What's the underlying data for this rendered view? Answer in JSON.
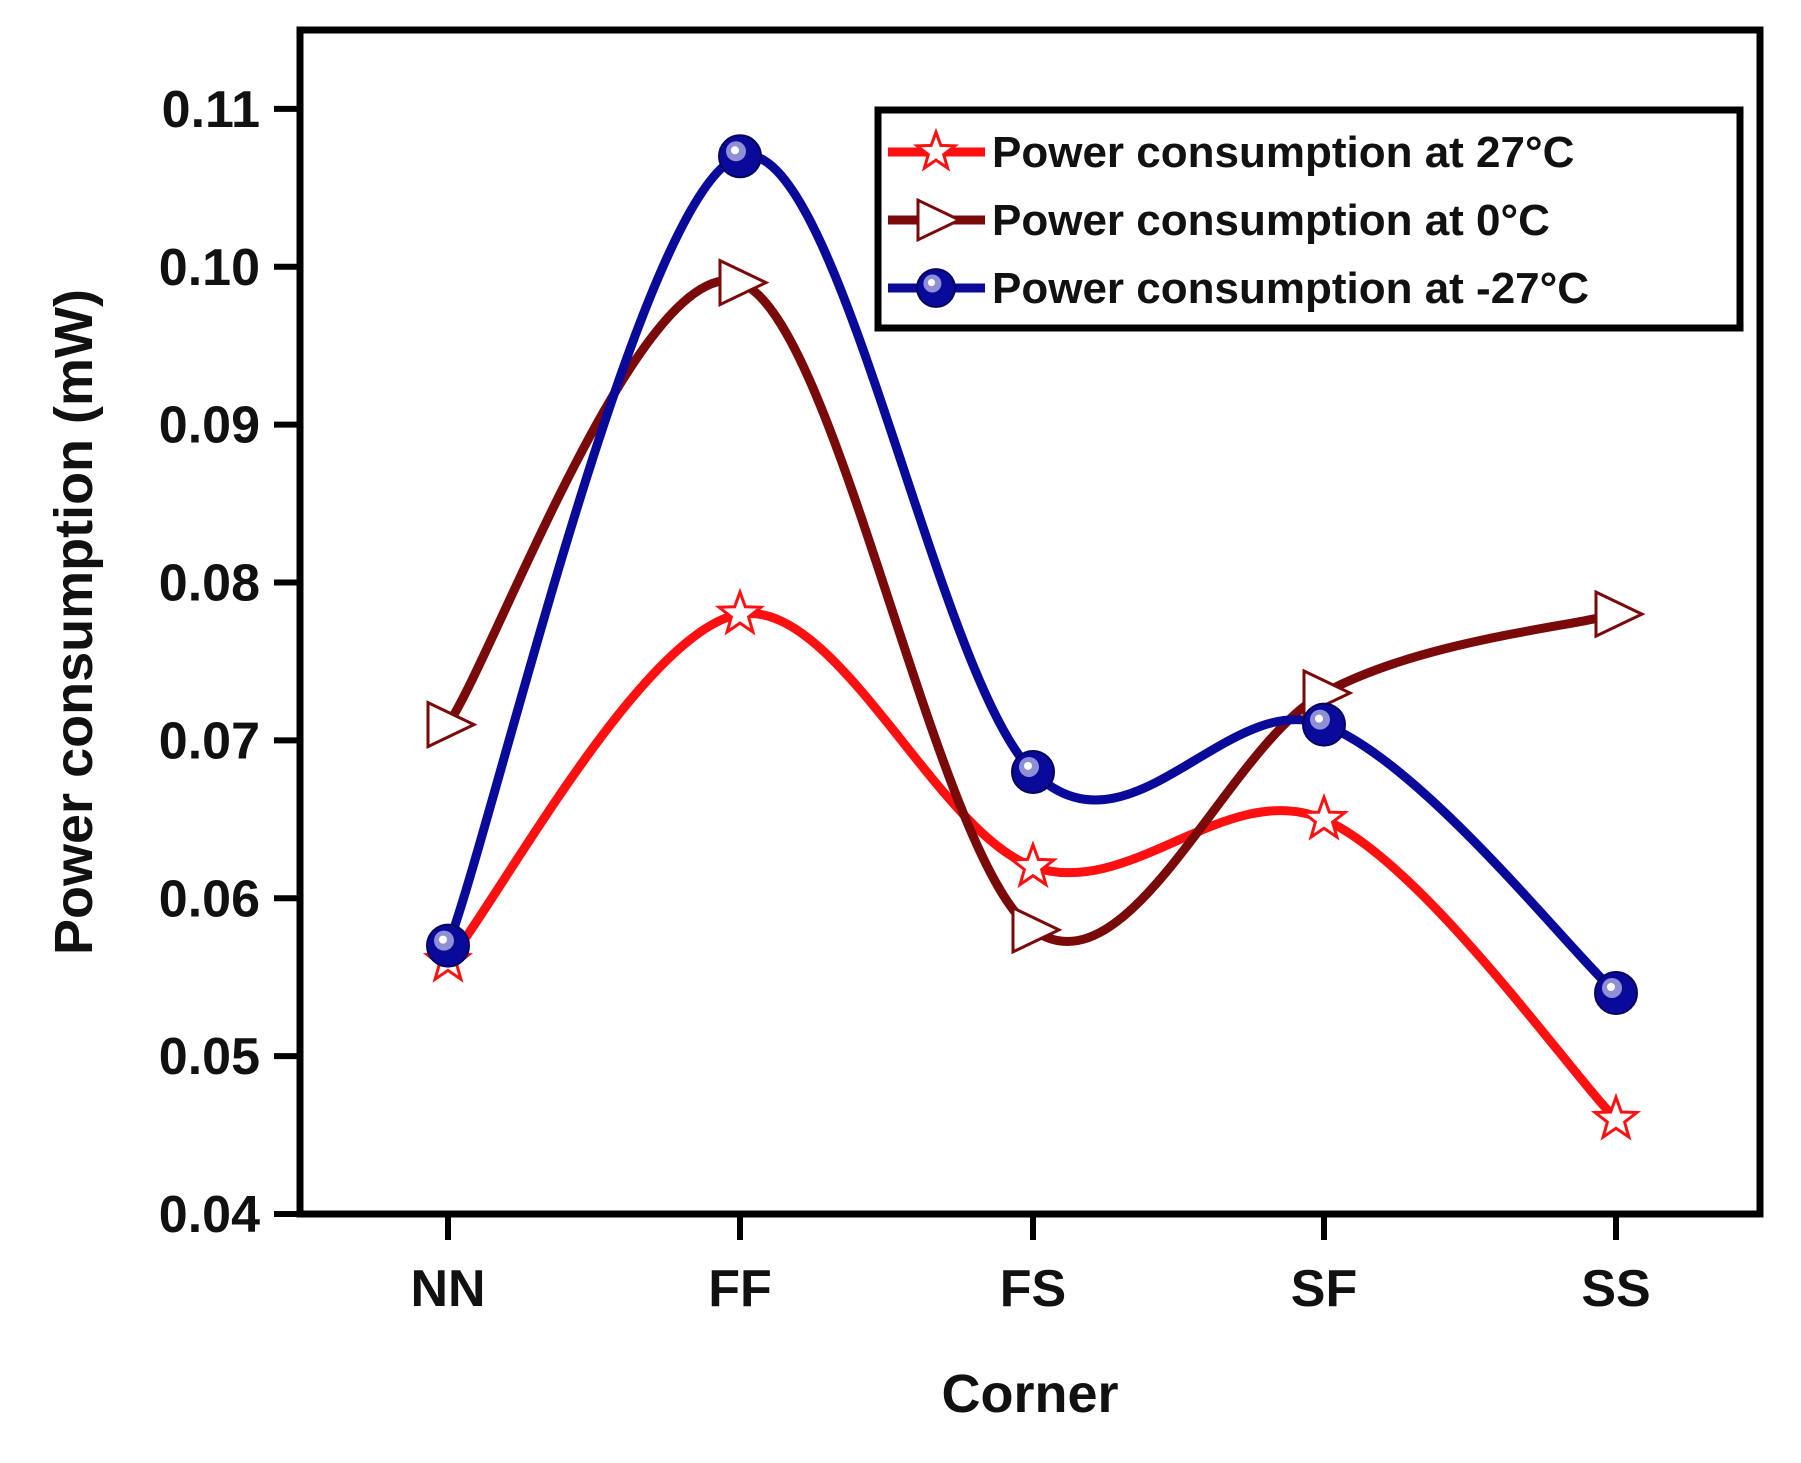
{
  "chart_data": {
    "type": "line",
    "xlabel": "Corner",
    "ylabel": "Power consumption (mW)",
    "categories": [
      "NN",
      "FF",
      "FS",
      "SF",
      "SS"
    ],
    "ylim": [
      0.04,
      0.115
    ],
    "yticks": [
      0.04,
      0.05,
      0.06,
      0.07,
      0.08,
      0.09,
      0.1,
      0.11
    ],
    "ytick_labels": [
      "0.04",
      "0.05",
      "0.06",
      "0.07",
      "0.08",
      "0.09",
      "0.10",
      "0.11"
    ],
    "legend_position": "top-right",
    "series": [
      {
        "name": "Power consumption at 27°C",
        "values": [
          0.056,
          0.078,
          0.062,
          0.065,
          0.046
        ],
        "color": "#ff1010",
        "marker": "star"
      },
      {
        "name": "Power consumption at 0°C",
        "values": [
          0.071,
          0.099,
          0.058,
          0.073,
          0.078
        ],
        "color": "#7a0a0a",
        "marker": "triangle-right"
      },
      {
        "name": "Power consumption at -27°C",
        "values": [
          0.057,
          0.107,
          0.068,
          0.071,
          0.054
        ],
        "color": "#0a0a9a",
        "marker": "circle"
      }
    ]
  }
}
